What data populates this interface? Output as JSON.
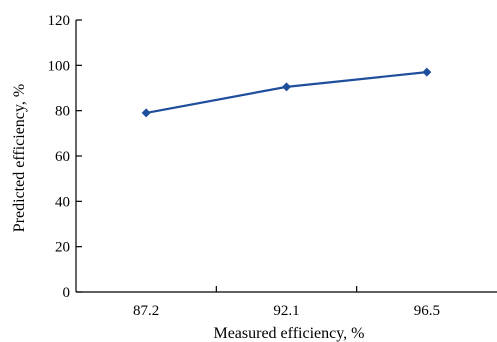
{
  "chart_data": {
    "type": "line",
    "xlabel": "Measured efficiency, %",
    "ylabel": "Predicted efficiency, %",
    "categories": [
      "87.2",
      "92.1",
      "96.5"
    ],
    "series": [
      {
        "values": [
          79,
          90.5,
          97
        ]
      }
    ],
    "ylim": [
      0,
      120
    ],
    "yticks": [
      0,
      20,
      40,
      60,
      80,
      100,
      120
    ],
    "grid": false,
    "marker": "diamond",
    "colors": {
      "series": "#1f4e9c",
      "axis": "#000000"
    }
  }
}
